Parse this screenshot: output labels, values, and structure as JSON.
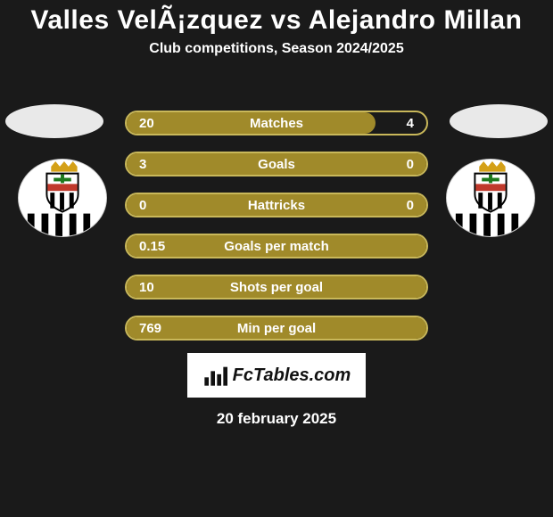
{
  "title": "Valles VelÃ¡zquez vs Alejandro Millan",
  "title_fontsize": 30,
  "subtitle": "Club competitions, Season 2024/2025",
  "subtitle_fontsize": 16,
  "colors": {
    "background": "#1a1a1a",
    "bar_fill": "#a08a2a",
    "bar_border": "#c9b85a",
    "bar_track": "#1a1a1a",
    "text": "#ffffff",
    "oval": "#e9e9e9"
  },
  "rows": [
    {
      "label": "Matches",
      "left": "20",
      "right": "4",
      "fill_pct": 83
    },
    {
      "label": "Goals",
      "left": "3",
      "right": "0",
      "fill_pct": 100
    },
    {
      "label": "Hattricks",
      "left": "0",
      "right": "0",
      "fill_pct": 100
    },
    {
      "label": "Goals per match",
      "left": "0.15",
      "right": "",
      "fill_pct": 100
    },
    {
      "label": "Shots per goal",
      "left": "10",
      "right": "",
      "fill_pct": 100
    },
    {
      "label": "Min per goal",
      "left": "769",
      "right": "",
      "fill_pct": 100
    }
  ],
  "brand": "FcTables.com",
  "date": "20 february 2025"
}
